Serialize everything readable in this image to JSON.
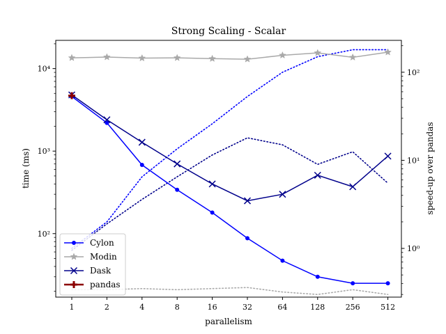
{
  "chart_data": {
    "type": "line",
    "title": "Strong Scaling - Scalar",
    "xlabel": "parallelism",
    "ylabel": "time (ms)",
    "y2label": "speed-up over pandas",
    "x_categories": [
      "1",
      "2",
      "4",
      "8",
      "16",
      "32",
      "64",
      "128",
      "256",
      "512"
    ],
    "y_scale": "log",
    "y2_scale": "log",
    "ylim": [
      17,
      22000
    ],
    "y2lim": [
      0.28,
      230
    ],
    "y_ticks": [
      {
        "value": 100,
        "label": "10²"
      },
      {
        "value": 1000,
        "label": "10³"
      },
      {
        "value": 10000,
        "label": "10⁴"
      }
    ],
    "y2_ticks": [
      {
        "value": 1,
        "label": "10⁰"
      },
      {
        "value": 10,
        "label": "10¹"
      },
      {
        "value": 100,
        "label": "10²"
      }
    ],
    "legend_position": "lower-left",
    "series": [
      {
        "name": "Cylon",
        "color": "#0000ff",
        "marker": "dot",
        "values": [
          4600,
          2200,
          680,
          340,
          180,
          88,
          47,
          30,
          25,
          25
        ]
      },
      {
        "name": "Modin",
        "color": "#a9a9a9",
        "marker": "star",
        "values": [
          13500,
          13800,
          13400,
          13500,
          13200,
          13000,
          14500,
          15500,
          13700,
          15800
        ]
      },
      {
        "name": "Dask",
        "color": "#00008b",
        "marker": "x",
        "values": [
          4800,
          2400,
          1280,
          700,
          400,
          250,
          300,
          510,
          370,
          870
        ]
      },
      {
        "name": "pandas",
        "color": "#8b0000",
        "marker": "plus",
        "values": [
          4700
        ]
      }
    ],
    "speedup_series": [
      {
        "name": "Cylon",
        "color": "#0000ff",
        "style": "dotted",
        "values": [
          1.0,
          2.0,
          6.5,
          13.5,
          26,
          53,
          100,
          150,
          180,
          180
        ]
      },
      {
        "name": "Modin",
        "color": "#a9a9a9",
        "style": "dotted",
        "values": [
          0.34,
          0.34,
          0.35,
          0.34,
          0.35,
          0.36,
          0.32,
          0.3,
          0.34,
          0.3
        ]
      },
      {
        "name": "Dask",
        "color": "#00008b",
        "style": "dotted",
        "values": [
          0.95,
          1.9,
          3.6,
          6.5,
          11.5,
          18,
          15,
          9,
          12.5,
          5.5
        ]
      }
    ]
  }
}
